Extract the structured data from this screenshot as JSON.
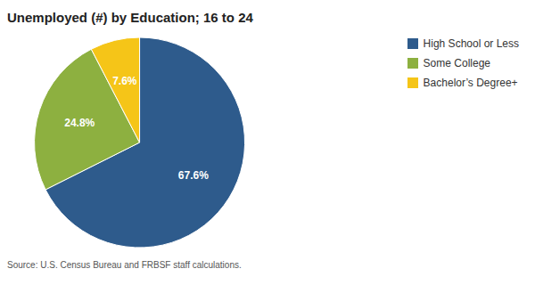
{
  "chart_data": {
    "type": "pie",
    "title": "Unemployed (#) by Education; 16 to 24",
    "annotations": [
      "Source: U.S. Census Bureau and FRBSF staff calculations."
    ],
    "categories": [
      "High School or Less",
      "Some College",
      "Bachelor’s Degree+"
    ],
    "values": [
      67.6,
      24.8,
      7.6
    ],
    "colors": [
      "#2E5B8C",
      "#8DB040",
      "#F5C518"
    ],
    "data_labels": true,
    "value_labels": [
      "67.6%",
      "24.8%",
      "7.6%"
    ],
    "legend": "upper right"
  }
}
